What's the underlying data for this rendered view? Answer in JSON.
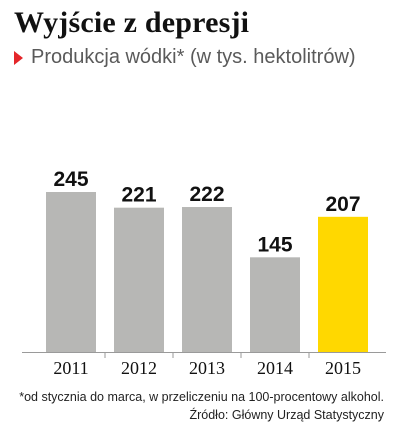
{
  "header": {
    "title": "Wyjście z depresji",
    "subtitle": "Produkcja wódki* (w tys. hektolitrów)",
    "subtitle_marker_icon": "triangle-right-icon",
    "accent_color": "#e4262a"
  },
  "chart_data": {
    "type": "bar",
    "categories": [
      "2011",
      "2012",
      "2013",
      "2014",
      "2015"
    ],
    "values": [
      245,
      221,
      222,
      145,
      207
    ],
    "data_labels": [
      "245",
      "221",
      "222",
      "145",
      "207"
    ],
    "title": "Wyjście z depresji",
    "subtitle": "Produkcja wódki* (w tys. hektolitrów)",
    "xlabel": "",
    "ylabel": "",
    "ylim": [
      0,
      245
    ],
    "grid": false,
    "bar_color": "#b7b7b5",
    "highlight_color": "#ffd800",
    "highlight_category": "2015"
  },
  "footer": {
    "note": "*od stycznia do marca, w przeliczeniu na 100-procentowy alkohol.",
    "source": "Źródło: Główny Urząd Statystyczny"
  }
}
